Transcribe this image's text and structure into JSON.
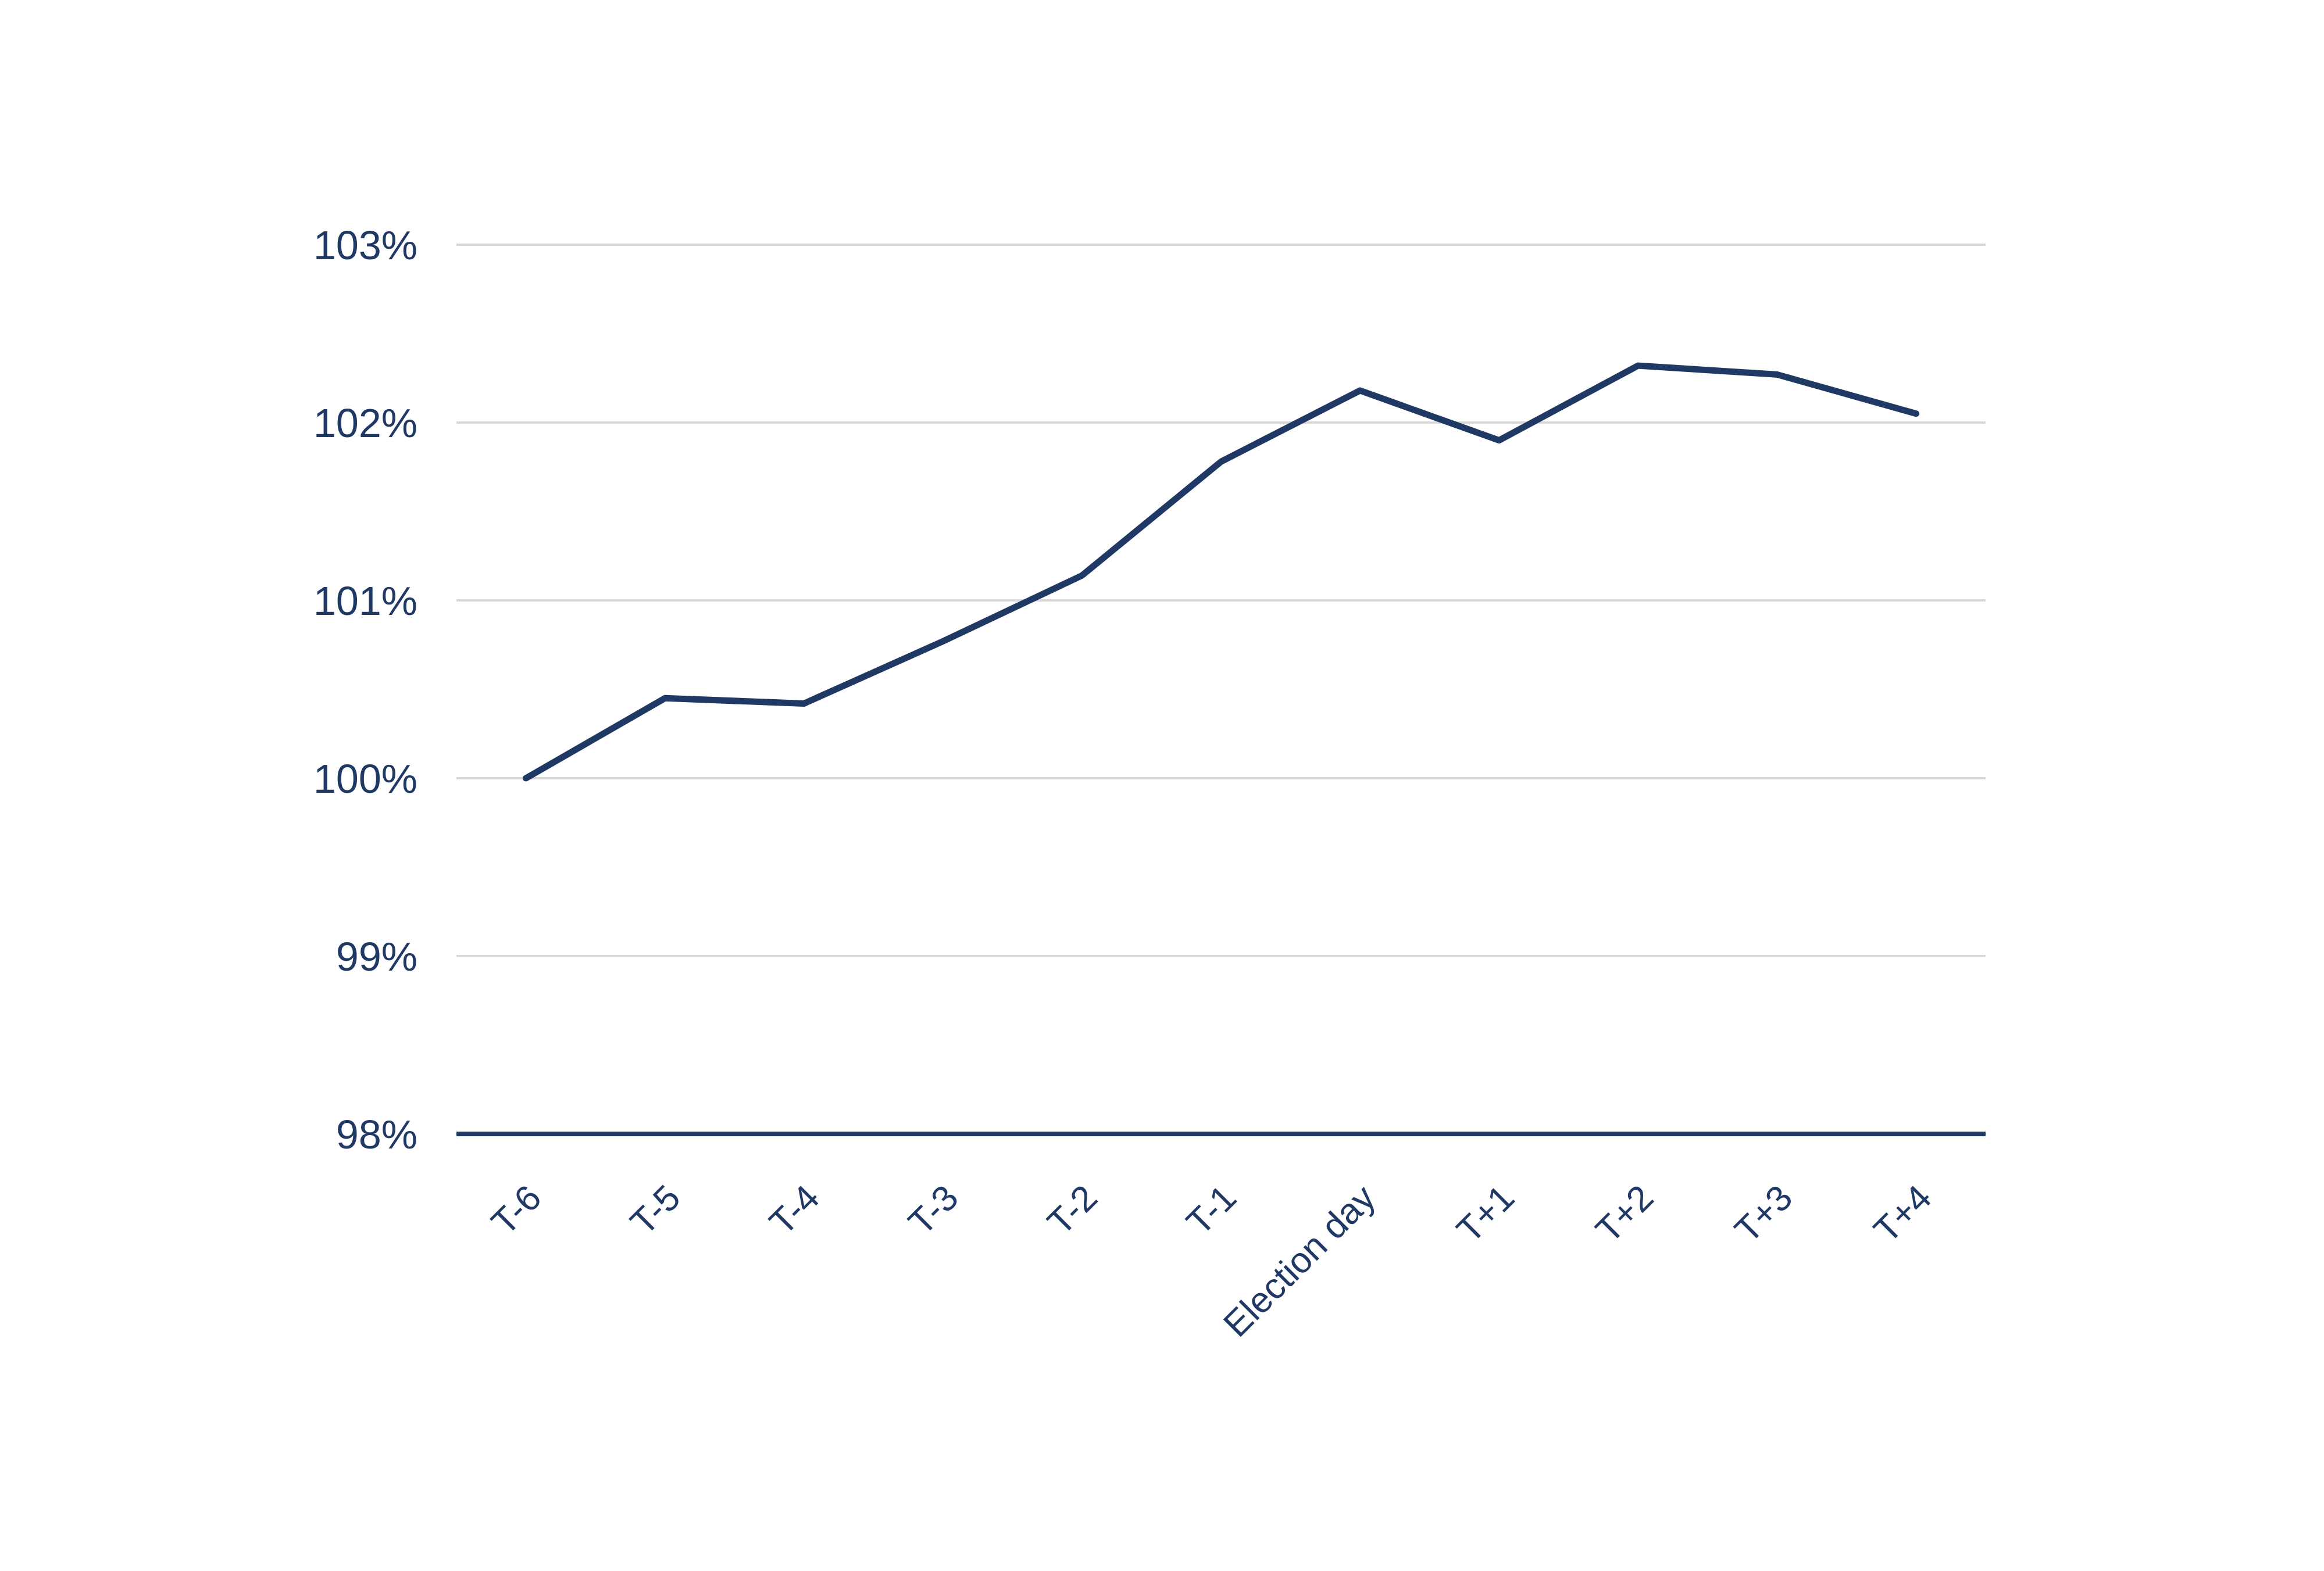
{
  "chart_data": {
    "type": "line",
    "title": "",
    "xlabel": "",
    "ylabel": "",
    "categories": [
      "T-6",
      "T-5",
      "T-4",
      "T-3",
      "T-2",
      "T-1",
      "Election day",
      "T+1",
      "T+2",
      "T+3",
      "T+4"
    ],
    "values": [
      100.0,
      100.45,
      100.42,
      100.77,
      101.14,
      101.78,
      102.18,
      101.9,
      102.32,
      102.27,
      102.05
    ],
    "ylim": [
      98,
      103
    ],
    "ytick_labels": [
      "103%",
      "102%",
      "101%",
      "100%",
      "99%",
      "98%"
    ],
    "ytick_values": [
      103,
      102,
      101,
      100,
      99,
      98
    ],
    "grid": "horizontal",
    "legend": "none",
    "x_label_rotation_deg": -45,
    "line_color": "#1f3864",
    "gridline_color": "#d9d9d9",
    "axis_color": "#1f3864",
    "label_color": "#1f3864",
    "background_color": "#ffffff"
  }
}
